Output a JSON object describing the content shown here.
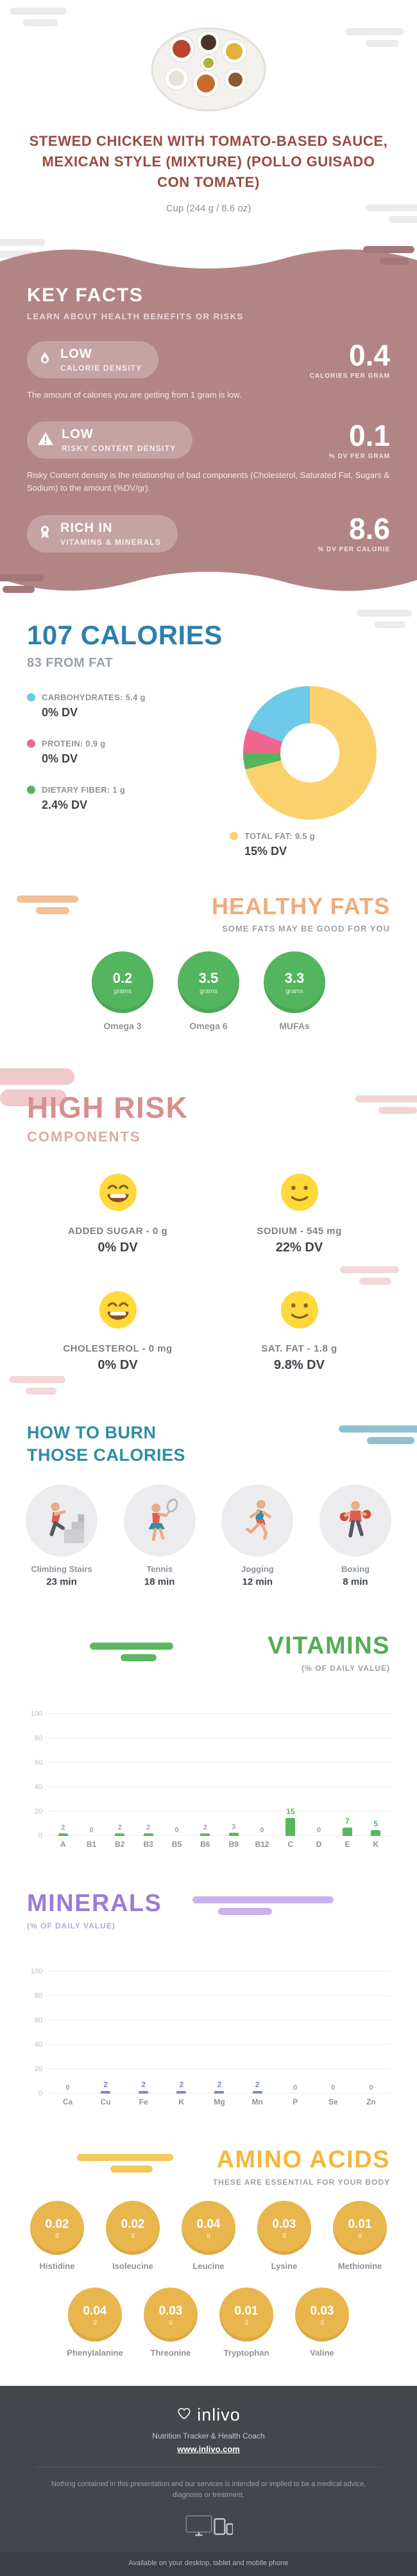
{
  "theme": {
    "title_color": "#9a4a3e",
    "keyfacts_bg": "#b28585",
    "keyfacts_pill": "#c5a3a3",
    "calories_title": "#2e7fab",
    "healthy_fats_accent": "#eeab7e",
    "fats_circle": "#53b55e",
    "high_risk_accent": "#d98f8f",
    "burn_accent": "#2d8da4",
    "vitamins_accent": "#53ae53",
    "minerals_accent": "#9d7bd8",
    "amino_accent": "#f1b93f",
    "amino_circle": "#e9b64d",
    "smiley_yellow": "#ffd83b",
    "footer_bg": "#43474b"
  },
  "header": {
    "title": "STEWED CHICKEN WITH TOMATO-BASED SAUCE, MEXICAN STYLE (MIXTURE) (POLLO GUISADO CON TOMATE)",
    "serving": "Cup (244 g / 8.6 oz)"
  },
  "key_facts": {
    "heading": "KEY FACTS",
    "subheading": "LEARN ABOUT HEALTH BENEFITS OR RISKS",
    "facts": [
      {
        "icon": "flame-icon",
        "badge": "LOW",
        "label": "CALORIE DENSITY",
        "value": "0.4",
        "unit": "CALORIES PER GRAM",
        "description": "The amount of calories you are getting from 1 gram is low."
      },
      {
        "icon": "warning-icon",
        "badge": "LOW",
        "label": "RISKY CONTENT DENSITY",
        "value": "0.1",
        "unit": "% DV PER GRAM",
        "description": "Risky Content density is the relationship of bad components (Cholesterol, Saturated Fat, Sugars & Sodium) to the amount (%DV/gr)."
      },
      {
        "icon": "medal-icon",
        "badge": "RICH IN",
        "label": "VITAMINS & MINERALS",
        "value": "8.6",
        "unit": "% DV PER CALORIE"
      }
    ]
  },
  "chart_data": [
    {
      "id": "calorie-breakdown-donut",
      "type": "pie",
      "title": "107 CALORIES",
      "subtitle": "83 FROM FAT",
      "slices": [
        {
          "name": "TOTAL FAT: 9.5 g",
          "dv": "15% DV",
          "percent": 71,
          "color": "#f9d26e"
        },
        {
          "name": "DIETARY FIBER: 1 g",
          "dv": "2.4% DV",
          "percent": 4,
          "color": "#56b45c"
        },
        {
          "name": "PROTEIN: 0.9 g",
          "dv": "0% DV",
          "percent": 6,
          "color": "#f0668f"
        },
        {
          "name": "CARBOHYDRATES: 5.4 g",
          "dv": "0% DV",
          "percent": 19,
          "color": "#6ec9e8"
        }
      ]
    },
    {
      "id": "vitamins-bar",
      "type": "bar",
      "title": "VITAMINS",
      "subtitle": "(% OF DAILY VALUE)",
      "categories": [
        "A",
        "B1",
        "B2",
        "B3",
        "B5",
        "B6",
        "B9",
        "B12",
        "C",
        "D",
        "E",
        "K"
      ],
      "values": [
        2,
        0,
        2,
        2,
        0,
        2,
        3,
        0,
        15,
        0,
        7,
        5
      ],
      "ylim": [
        0,
        100
      ],
      "yticks": [
        0,
        20,
        40,
        60,
        80,
        100
      ],
      "bar_color": "#57b75e",
      "label_accent_min": 5,
      "grid": true,
      "legend": false
    },
    {
      "id": "minerals-bar",
      "type": "bar",
      "title": "MINERALS",
      "subtitle": "(% OF DAILY VALUE)",
      "categories": [
        "Ca",
        "Cu",
        "Fe",
        "K",
        "Mg",
        "Mn",
        "P",
        "Se",
        "Zn"
      ],
      "values": [
        0,
        2,
        2,
        2,
        2,
        2,
        0,
        0,
        0
      ],
      "ylim": [
        0,
        100
      ],
      "yticks": [
        0,
        20,
        40,
        60,
        80,
        100
      ],
      "bar_color": "#7d84db",
      "label_accent_min": 1,
      "grid": true,
      "legend": false
    }
  ],
  "healthy_fats": {
    "heading": "HEALTHY FATS",
    "subheading": "SOME FATS MAY BE GOOD FOR YOU",
    "unit": "grams",
    "items": [
      {
        "name": "Omega 3",
        "value": "0.2"
      },
      {
        "name": "Omega 6",
        "value": "3.5"
      },
      {
        "name": "MUFAs",
        "value": "3.3"
      }
    ]
  },
  "high_risk": {
    "heading": "HIGH RISK",
    "subheading": "COMPONENTS",
    "items": [
      {
        "icon": "grin-face-icon",
        "name": "ADDED SUGAR - 0 g",
        "dv": "0% DV"
      },
      {
        "icon": "smile-face-icon",
        "name": "SODIUM - 545 mg",
        "dv": "22% DV"
      },
      {
        "icon": "grin-face-icon",
        "name": "CHOLESTEROL - 0 mg",
        "dv": "0% DV"
      },
      {
        "icon": "smile-face-icon",
        "name": "SAT. FAT - 1.8 g",
        "dv": "9.8% DV"
      }
    ]
  },
  "burn": {
    "heading_line1": "HOW TO BURN",
    "heading_line2": "THOSE CALORIES",
    "items": [
      {
        "icon": "climbing-stairs-icon",
        "name": "Climbing Stairs",
        "minutes": "23 min"
      },
      {
        "icon": "tennis-icon",
        "name": "Tennis",
        "minutes": "18 min"
      },
      {
        "icon": "jogging-icon",
        "name": "Jogging",
        "minutes": "12 min"
      },
      {
        "icon": "boxing-icon",
        "name": "Boxing",
        "minutes": "8 min"
      }
    ]
  },
  "amino_acids": {
    "heading": "AMINO ACIDS",
    "subheading": "THESE ARE ESSENTIAL FOR YOUR BODY",
    "unit": "g",
    "items": [
      {
        "name": "Histidine",
        "value": "0.02"
      },
      {
        "name": "Isoleucine",
        "value": "0.02"
      },
      {
        "name": "Leucine",
        "value": "0.04"
      },
      {
        "name": "Lysine",
        "value": "0.03"
      },
      {
        "name": "Methionine",
        "value": "0.01"
      },
      {
        "name": "Phenylalanine",
        "value": "0.04"
      },
      {
        "name": "Threonine",
        "value": "0.03"
      },
      {
        "name": "Tryptophan",
        "value": "0.01"
      },
      {
        "name": "Valine",
        "value": "0.03"
      }
    ]
  },
  "footer": {
    "brand": "inlivo",
    "tagline": "Nutrition Tracker & Health Coach",
    "url": "www.inlivo.com",
    "disclaimer": "Nothing contained in this presentation and our services is intended or implied to be a medical advice, diagnosis or treatment.",
    "availability": "Available on your desktop, tablet and mobile phone"
  }
}
